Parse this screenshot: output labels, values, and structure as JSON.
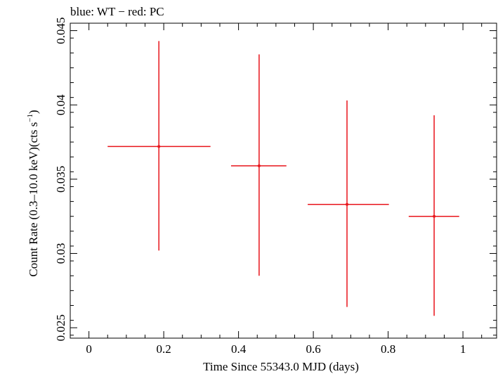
{
  "chart_data": {
    "type": "scatter",
    "title": "blue: WT − red: PC",
    "xlabel": "Time Since 55343.0 MJD (days)",
    "ylabel_main": "Count Rate (0.3–10.0 keV)(cts s",
    "ylabel_sup": "−1",
    "ylabel_close": ")",
    "xlim": [
      -0.05,
      1.09
    ],
    "ylim": [
      0.0243,
      0.0455
    ],
    "x_ticks": [
      0,
      0.2,
      0.4,
      0.6,
      0.8,
      1
    ],
    "x_tick_labels": [
      "0",
      "0.2",
      "0.4",
      "0.6",
      "0.8",
      "1"
    ],
    "y_ticks": [
      0.025,
      0.03,
      0.035,
      0.04,
      0.045
    ],
    "y_tick_labels": [
      "0.025",
      "0.03",
      "0.035",
      "0.04",
      "0.045"
    ],
    "series": [
      {
        "color": "#e8141b",
        "points": [
          {
            "x": 0.187,
            "xerr_lo": 0.137,
            "xerr_hi": 0.138,
            "y": 0.0372,
            "yerr_lo": 0.007,
            "yerr_hi": 0.0071
          },
          {
            "x": 0.455,
            "xerr_lo": 0.075,
            "xerr_hi": 0.073,
            "y": 0.0359,
            "yerr_lo": 0.0074,
            "yerr_hi": 0.0075
          },
          {
            "x": 0.69,
            "xerr_lo": 0.105,
            "xerr_hi": 0.112,
            "y": 0.0333,
            "yerr_lo": 0.0069,
            "yerr_hi": 0.007
          },
          {
            "x": 0.923,
            "xerr_lo": 0.068,
            "xerr_hi": 0.067,
            "y": 0.0325,
            "yerr_lo": 0.0067,
            "yerr_hi": 0.0068
          }
        ]
      }
    ]
  }
}
